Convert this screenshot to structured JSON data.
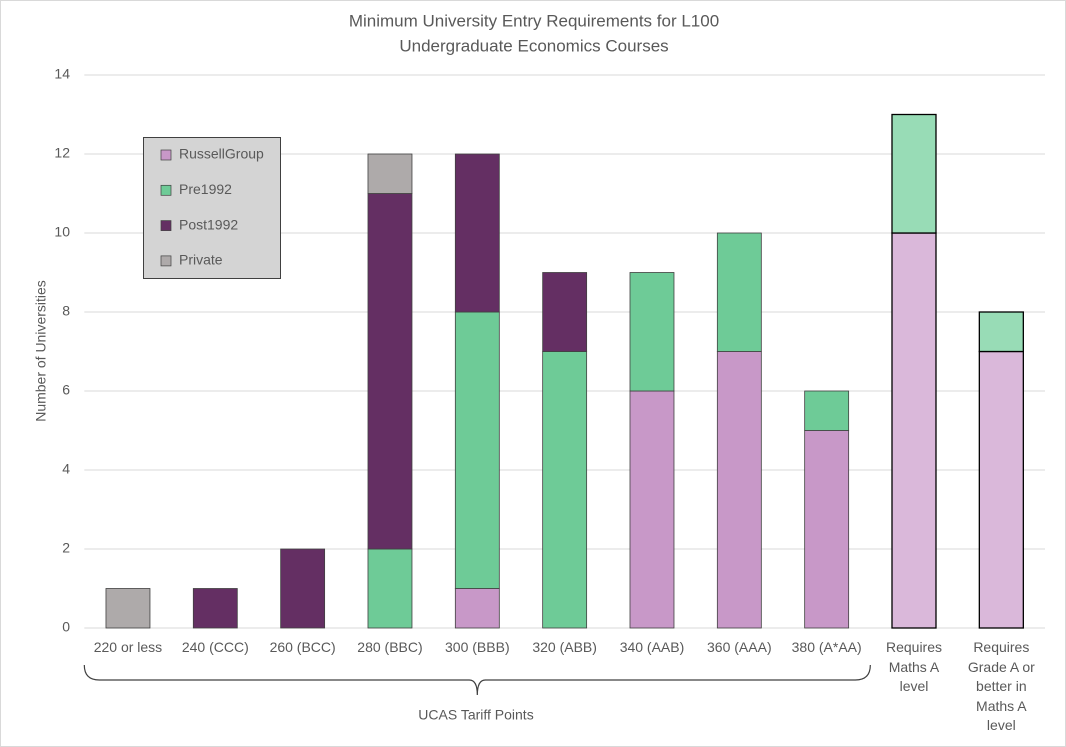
{
  "chart_data": {
    "type": "stacked_bar",
    "title": [
      "Minimum University Entry Requirements for L100",
      "Undergraduate Economics Courses"
    ],
    "ylabel": "Number of Universities",
    "xlabel": "UCAS Tariff Points",
    "categories": [
      "220 or less",
      "240 (CCC)",
      "260 (BCC)",
      "280 (BBC)",
      "300 (BBB)",
      "320 (ABB)",
      "340 (AAB)",
      "360 (AAA)",
      "380 (A*AA)",
      "Requires Maths A level",
      "Requires Grade A or better in Maths A level"
    ],
    "series": [
      {
        "name": "RussellGroup",
        "color": "#c898c8",
        "colors": [
          "#c898c8",
          "#c898c8",
          "#c898c8",
          "#c898c8",
          "#c898c8",
          "#c898c8",
          "#c898c8",
          "#c898c8",
          "#c898c8",
          "#dab8da",
          "#dab8da"
        ],
        "values": [
          0,
          0,
          0,
          0,
          1,
          0,
          6,
          7,
          5,
          10,
          7
        ]
      },
      {
        "name": "Pre1992",
        "color": "#6ecb97",
        "colors": [
          "#6ecb97",
          "#6ecb97",
          "#6ecb97",
          "#6ecb97",
          "#6ecb97",
          "#6ecb97",
          "#6ecb97",
          "#6ecb97",
          "#6ecb97",
          "#98dcb6",
          "#98dcb6"
        ],
        "values": [
          0,
          0,
          0,
          2,
          7,
          7,
          3,
          3,
          1,
          3,
          1
        ]
      },
      {
        "name": "Post1992",
        "color": "#642f63",
        "values": [
          0,
          1,
          2,
          9,
          4,
          2,
          0,
          0,
          0,
          0,
          0
        ]
      },
      {
        "name": "Private",
        "color": "#aeaaaa",
        "values": [
          1,
          0,
          0,
          1,
          0,
          0,
          0,
          0,
          0,
          0,
          0
        ]
      }
    ],
    "ylim": [
      0,
      14
    ],
    "yticks": [
      0,
      2,
      4,
      6,
      8,
      10,
      12,
      14
    ],
    "grid": true,
    "legend": "upper left"
  }
}
